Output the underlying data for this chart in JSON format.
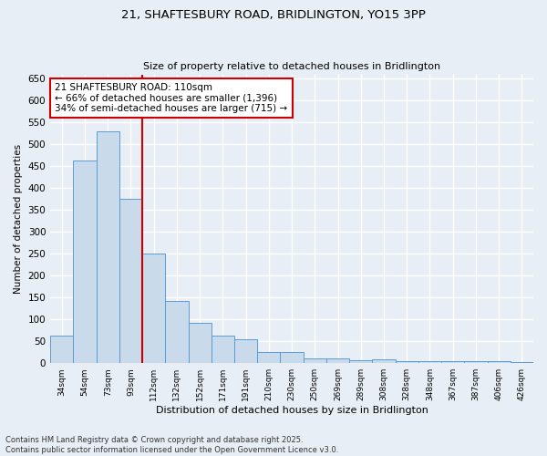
{
  "title_line1": "21, SHAFTESBURY ROAD, BRIDLINGTON, YO15 3PP",
  "title_line2": "Size of property relative to detached houses in Bridlington",
  "xlabel": "Distribution of detached houses by size in Bridlington",
  "ylabel": "Number of detached properties",
  "categories": [
    "34sqm",
    "54sqm",
    "73sqm",
    "93sqm",
    "112sqm",
    "132sqm",
    "152sqm",
    "171sqm",
    "191sqm",
    "210sqm",
    "230sqm",
    "250sqm",
    "269sqm",
    "289sqm",
    "308sqm",
    "328sqm",
    "348sqm",
    "367sqm",
    "387sqm",
    "406sqm",
    "426sqm"
  ],
  "values": [
    62,
    463,
    530,
    375,
    250,
    142,
    93,
    63,
    55,
    26,
    26,
    11,
    11,
    6,
    8,
    4,
    4,
    5,
    4,
    4,
    3
  ],
  "bar_color": "#c9daea",
  "bar_edge_color": "#5b9bd5",
  "vline_x_index": 3.5,
  "vline_color": "#cc0000",
  "annotation_text": "21 SHAFTESBURY ROAD: 110sqm\n← 66% of detached houses are smaller (1,396)\n34% of semi-detached houses are larger (715) →",
  "annotation_box_color": "white",
  "annotation_box_edge_color": "#cc0000",
  "annotation_fontsize": 7.5,
  "footer_line1": "Contains HM Land Registry data © Crown copyright and database right 2025.",
  "footer_line2": "Contains public sector information licensed under the Open Government Licence v3.0.",
  "background_color": "#e8eef5",
  "plot_background_color": "#e8eef5",
  "grid_color": "white",
  "ylim": [
    0,
    660
  ],
  "yticks": [
    0,
    50,
    100,
    150,
    200,
    250,
    300,
    350,
    400,
    450,
    500,
    550,
    600,
    650
  ]
}
